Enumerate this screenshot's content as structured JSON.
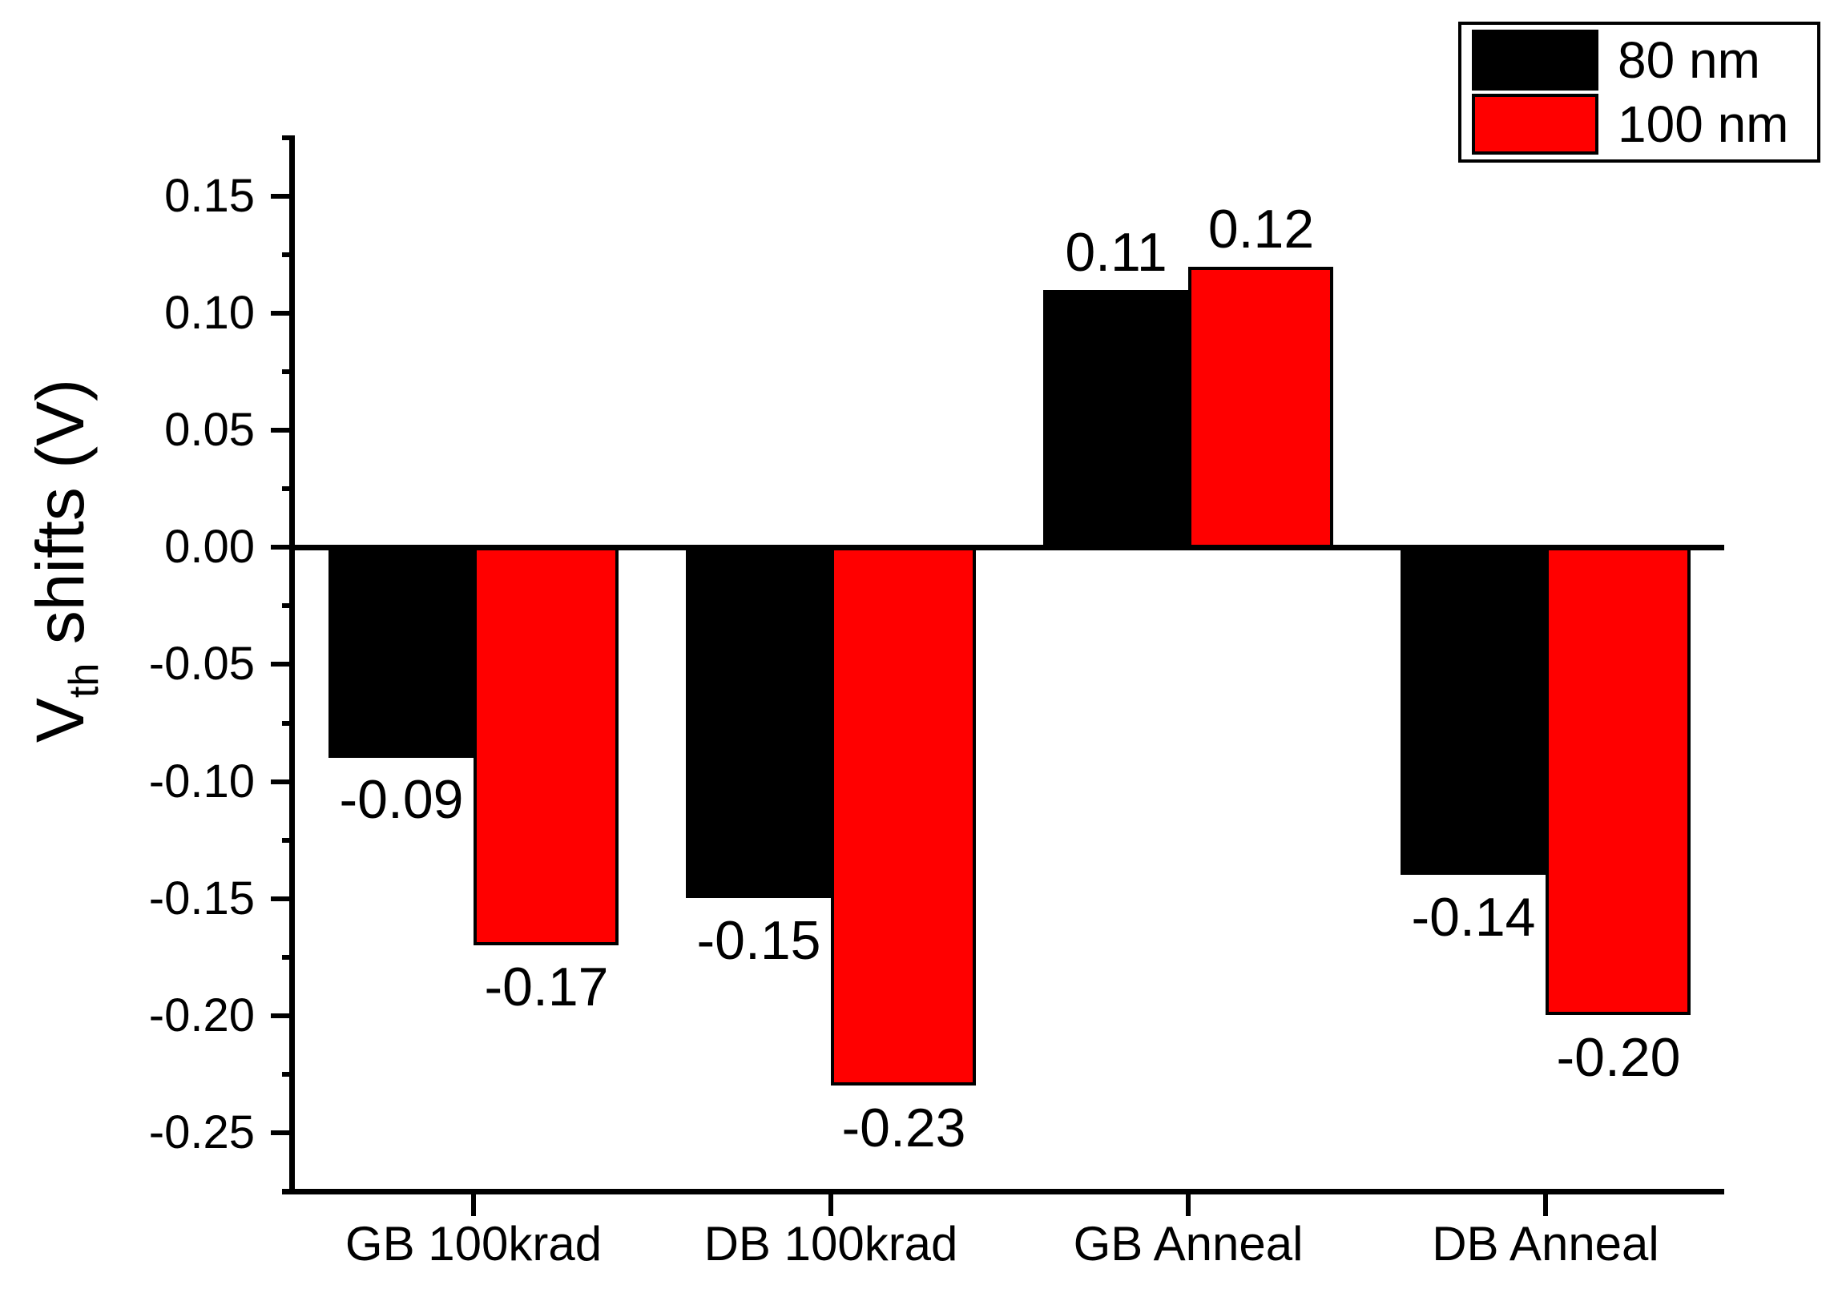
{
  "chart_data": {
    "type": "bar",
    "title": "",
    "categories": [
      "GB 100krad",
      "DB 100krad",
      "GB Anneal",
      "DB Anneal"
    ],
    "series": [
      {
        "name": "80 nm",
        "color": "#000000",
        "values": [
          -0.09,
          -0.15,
          0.11,
          -0.14
        ],
        "labels": [
          "-0.09",
          "-0.15",
          "0.11",
          "-0.14"
        ]
      },
      {
        "name": "100 nm",
        "color": "#ff0000",
        "values": [
          -0.17,
          -0.23,
          0.12,
          -0.2
        ],
        "labels": [
          "-0.17",
          "-0.23",
          "0.12",
          "-0.20"
        ]
      }
    ],
    "ylabel_main": "V",
    "ylabel_sub": "th",
    "ylabel_rest": " shifts (V)",
    "xlabel": "",
    "y_axis": {
      "min": -0.275,
      "max": 0.175,
      "major_ticks": [
        {
          "value": 0.15,
          "label": "0.15"
        },
        {
          "value": 0.1,
          "label": "0.10"
        },
        {
          "value": 0.05,
          "label": "0.05"
        },
        {
          "value": 0.0,
          "label": "0.00"
        },
        {
          "value": -0.05,
          "label": "-0.05"
        },
        {
          "value": -0.1,
          "label": "-0.10"
        },
        {
          "value": -0.15,
          "label": "-0.15"
        },
        {
          "value": -0.2,
          "label": "-0.20"
        },
        {
          "value": -0.25,
          "label": "-0.25"
        }
      ],
      "minor_tick_values": [
        0.175,
        0.125,
        0.075,
        0.025,
        -0.025,
        -0.075,
        -0.125,
        -0.175,
        -0.225,
        -0.275
      ]
    },
    "legend": {
      "position": "top-right",
      "entries": [
        {
          "label": "80 nm",
          "color": "#000000"
        },
        {
          "label": "100 nm",
          "color": "#ff0000"
        }
      ]
    },
    "grid": false,
    "zero_line": true,
    "bar_outline_color": "#000000",
    "background": "#ffffff"
  }
}
